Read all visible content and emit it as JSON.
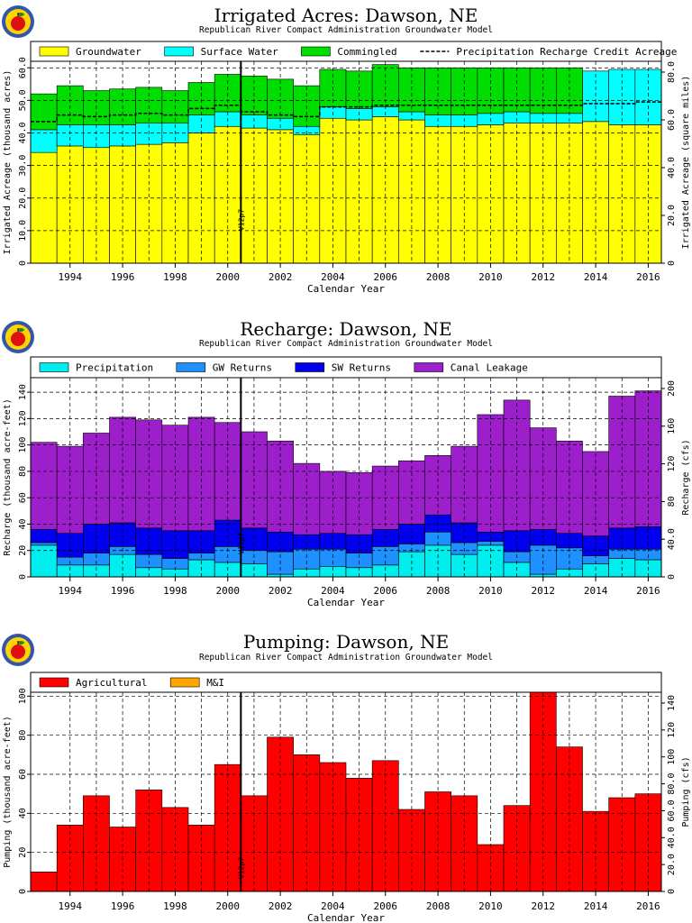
{
  "logo": {
    "icon": "apple-logo-icon",
    "colors": {
      "ring": "#3355aa",
      "inner": "#ffd400",
      "apple": "#dd1111",
      "leaf": "#228822"
    }
  },
  "chart_data": [
    {
      "type": "area",
      "title": "Irrigated Acres: Dawson, NE",
      "subtitle": "Republican River Compact Administration Groundwater Model",
      "xlabel": "Calendar Year",
      "ylabel": "Irrigated Acreage (thousand acres)",
      "ylabel_right": "Irrigated Acreage (square miles)",
      "xlim": [
        1992.5,
        2016.5
      ],
      "ylim": [
        0,
        62
      ],
      "xticks": [
        "1994",
        "1996",
        "1998",
        "2000",
        "2002",
        "2004",
        "2006",
        "2008",
        "2010",
        "2012",
        "2014",
        "2016"
      ],
      "yticks": [
        "0",
        "10.0",
        "20.0",
        "30.0",
        "40.0",
        "50.0",
        "60.0"
      ],
      "yticks_right": [
        "0",
        "20.0",
        "40.0",
        "60.0",
        "80.0"
      ],
      "grid": true,
      "legend_position": "top",
      "marker": {
        "x": 2000.5,
        "label": "V12p7"
      },
      "years": [
        1993,
        1994,
        1995,
        1996,
        1997,
        1998,
        1999,
        2000,
        2001,
        2002,
        2003,
        2004,
        2005,
        2006,
        2007,
        2008,
        2009,
        2010,
        2011,
        2012,
        2013,
        2014,
        2015,
        2016
      ],
      "series": [
        {
          "name": "Groundwater",
          "color": "#ffff00",
          "values": [
            34.0,
            36.0,
            35.5,
            36.0,
            36.5,
            37.0,
            40.0,
            42.0,
            41.5,
            41.0,
            39.5,
            44.5,
            44.0,
            45.0,
            44.0,
            42.0,
            42.0,
            42.5,
            43.0,
            43.0,
            43.0,
            43.5,
            42.5,
            42.5
          ]
        },
        {
          "name": "Surface Water",
          "color": "#00ffff",
          "values": [
            7.0,
            6.5,
            7.0,
            6.5,
            6.5,
            6.0,
            5.5,
            4.5,
            4.0,
            3.5,
            2.5,
            3.5,
            3.5,
            3.0,
            2.5,
            3.5,
            3.5,
            3.5,
            3.5,
            3.0,
            3.0,
            15.5,
            17.0,
            17.0
          ]
        },
        {
          "name": "Commingled",
          "color": "#00dd00",
          "values": [
            11.0,
            12.0,
            10.5,
            11.0,
            11.0,
            10.0,
            10.0,
            11.5,
            12.0,
            12.0,
            12.5,
            11.5,
            11.5,
            13.0,
            13.5,
            14.5,
            14.5,
            14.0,
            13.5,
            14.0,
            14.0,
            0.0,
            0.0,
            0.0
          ]
        }
      ],
      "precip_line": {
        "name": "Precipitation Recharge Credit Acreage",
        "values": [
          43.5,
          45.5,
          45.0,
          45.5,
          46.0,
          45.5,
          47.5,
          48.5,
          46.5,
          45.5,
          45.0,
          48.0,
          48.0,
          48.5,
          48.5,
          48.5,
          48.5,
          48.5,
          48.5,
          48.5,
          48.5,
          49.0,
          49.0,
          49.5
        ]
      }
    },
    {
      "type": "area",
      "title": "Recharge: Dawson, NE",
      "subtitle": "Republican River Compact Administration Groundwater Model",
      "xlabel": "Calendar Year",
      "ylabel": "Recharge (thousand acre-feet)",
      "ylabel_right": "Recharge (cfs)",
      "xlim": [
        1992.5,
        2016.5
      ],
      "ylim": [
        0,
        151
      ],
      "xticks": [
        "1994",
        "1996",
        "1998",
        "2000",
        "2002",
        "2004",
        "2006",
        "2008",
        "2010",
        "2012",
        "2014",
        "2016"
      ],
      "yticks": [
        "0",
        "20",
        "40",
        "60",
        "80",
        "100",
        "120",
        "140"
      ],
      "yticks_right": [
        "0",
        "40.0",
        "80",
        "120",
        "160",
        "200"
      ],
      "grid": true,
      "legend_position": "top",
      "marker": {
        "x": 2000.5,
        "label": "V12p7"
      },
      "years": [
        1993,
        1994,
        1995,
        1996,
        1997,
        1998,
        1999,
        2000,
        2001,
        2002,
        2003,
        2004,
        2005,
        2006,
        2007,
        2008,
        2009,
        2010,
        2011,
        2012,
        2013,
        2014,
        2015,
        2016
      ],
      "series": [
        {
          "name": "Precipitation",
          "color": "#00eeee",
          "values": [
            24,
            9,
            9,
            17,
            7,
            6,
            13,
            11,
            10,
            2,
            6,
            8,
            7,
            9,
            19,
            24,
            17,
            24,
            11,
            2,
            6,
            10,
            14,
            13
          ]
        },
        {
          "name": "GW Returns",
          "color": "#1e90ff",
          "values": [
            2,
            6,
            9,
            6,
            10,
            8,
            5,
            12,
            10,
            17,
            15,
            13,
            11,
            14,
            6,
            10,
            9,
            3,
            8,
            22,
            16,
            6,
            7,
            8
          ]
        },
        {
          "name": "SW Returns",
          "color": "#0000ee",
          "values": [
            10,
            18,
            22,
            18,
            20,
            21,
            17,
            20,
            17,
            15,
            11,
            12,
            14,
            13,
            15,
            13,
            15,
            7,
            16,
            12,
            11,
            15,
            16,
            17
          ]
        },
        {
          "name": "Canal Leakage",
          "color": "#9d1fcb",
          "values": [
            66,
            66,
            69,
            80,
            82,
            80,
            86,
            74,
            73,
            69,
            54,
            47,
            47,
            48,
            48,
            45,
            58,
            89,
            99,
            77,
            70,
            64,
            100,
            103
          ]
        }
      ]
    },
    {
      "type": "area",
      "title": "Pumping: Dawson, NE",
      "subtitle": "Republican River Compact Administration Groundwater Model",
      "xlabel": "Calendar Year",
      "ylabel": "Pumping (thousand acre-feet)",
      "ylabel_right": "Pumping (cfs)",
      "xlim": [
        1992.5,
        2016.5
      ],
      "ylim": [
        0,
        102
      ],
      "xticks": [
        "1994",
        "1996",
        "1998",
        "2000",
        "2002",
        "2004",
        "2006",
        "2008",
        "2010",
        "2012",
        "2014",
        "2016"
      ],
      "yticks": [
        "0",
        "20",
        "40",
        "60",
        "80",
        "100"
      ],
      "yticks_right": [
        "0",
        "20.0",
        "40.0",
        "60.0",
        "80.0",
        "100",
        "120",
        "140"
      ],
      "grid": true,
      "legend_position": "top",
      "marker": {
        "x": 2000.5,
        "label": "V12p7"
      },
      "years": [
        1993,
        1994,
        1995,
        1996,
        1997,
        1998,
        1999,
        2000,
        2001,
        2002,
        2003,
        2004,
        2005,
        2006,
        2007,
        2008,
        2009,
        2010,
        2011,
        2012,
        2013,
        2014,
        2015,
        2016
      ],
      "series": [
        {
          "name": "Agricultural",
          "color": "#ff0000",
          "values": [
            10,
            34,
            49,
            33,
            52,
            43,
            34,
            65,
            49,
            79,
            70,
            66,
            58,
            67,
            42,
            51,
            49,
            24,
            44,
            102,
            74,
            41,
            48,
            50
          ]
        },
        {
          "name": "M&I",
          "color": "#ffa500",
          "values": [
            0,
            0,
            0,
            0,
            0,
            0,
            0,
            0,
            0,
            0,
            0,
            0,
            0,
            0,
            0,
            0,
            0,
            0,
            0,
            0,
            0,
            0,
            0,
            0
          ]
        }
      ]
    }
  ]
}
